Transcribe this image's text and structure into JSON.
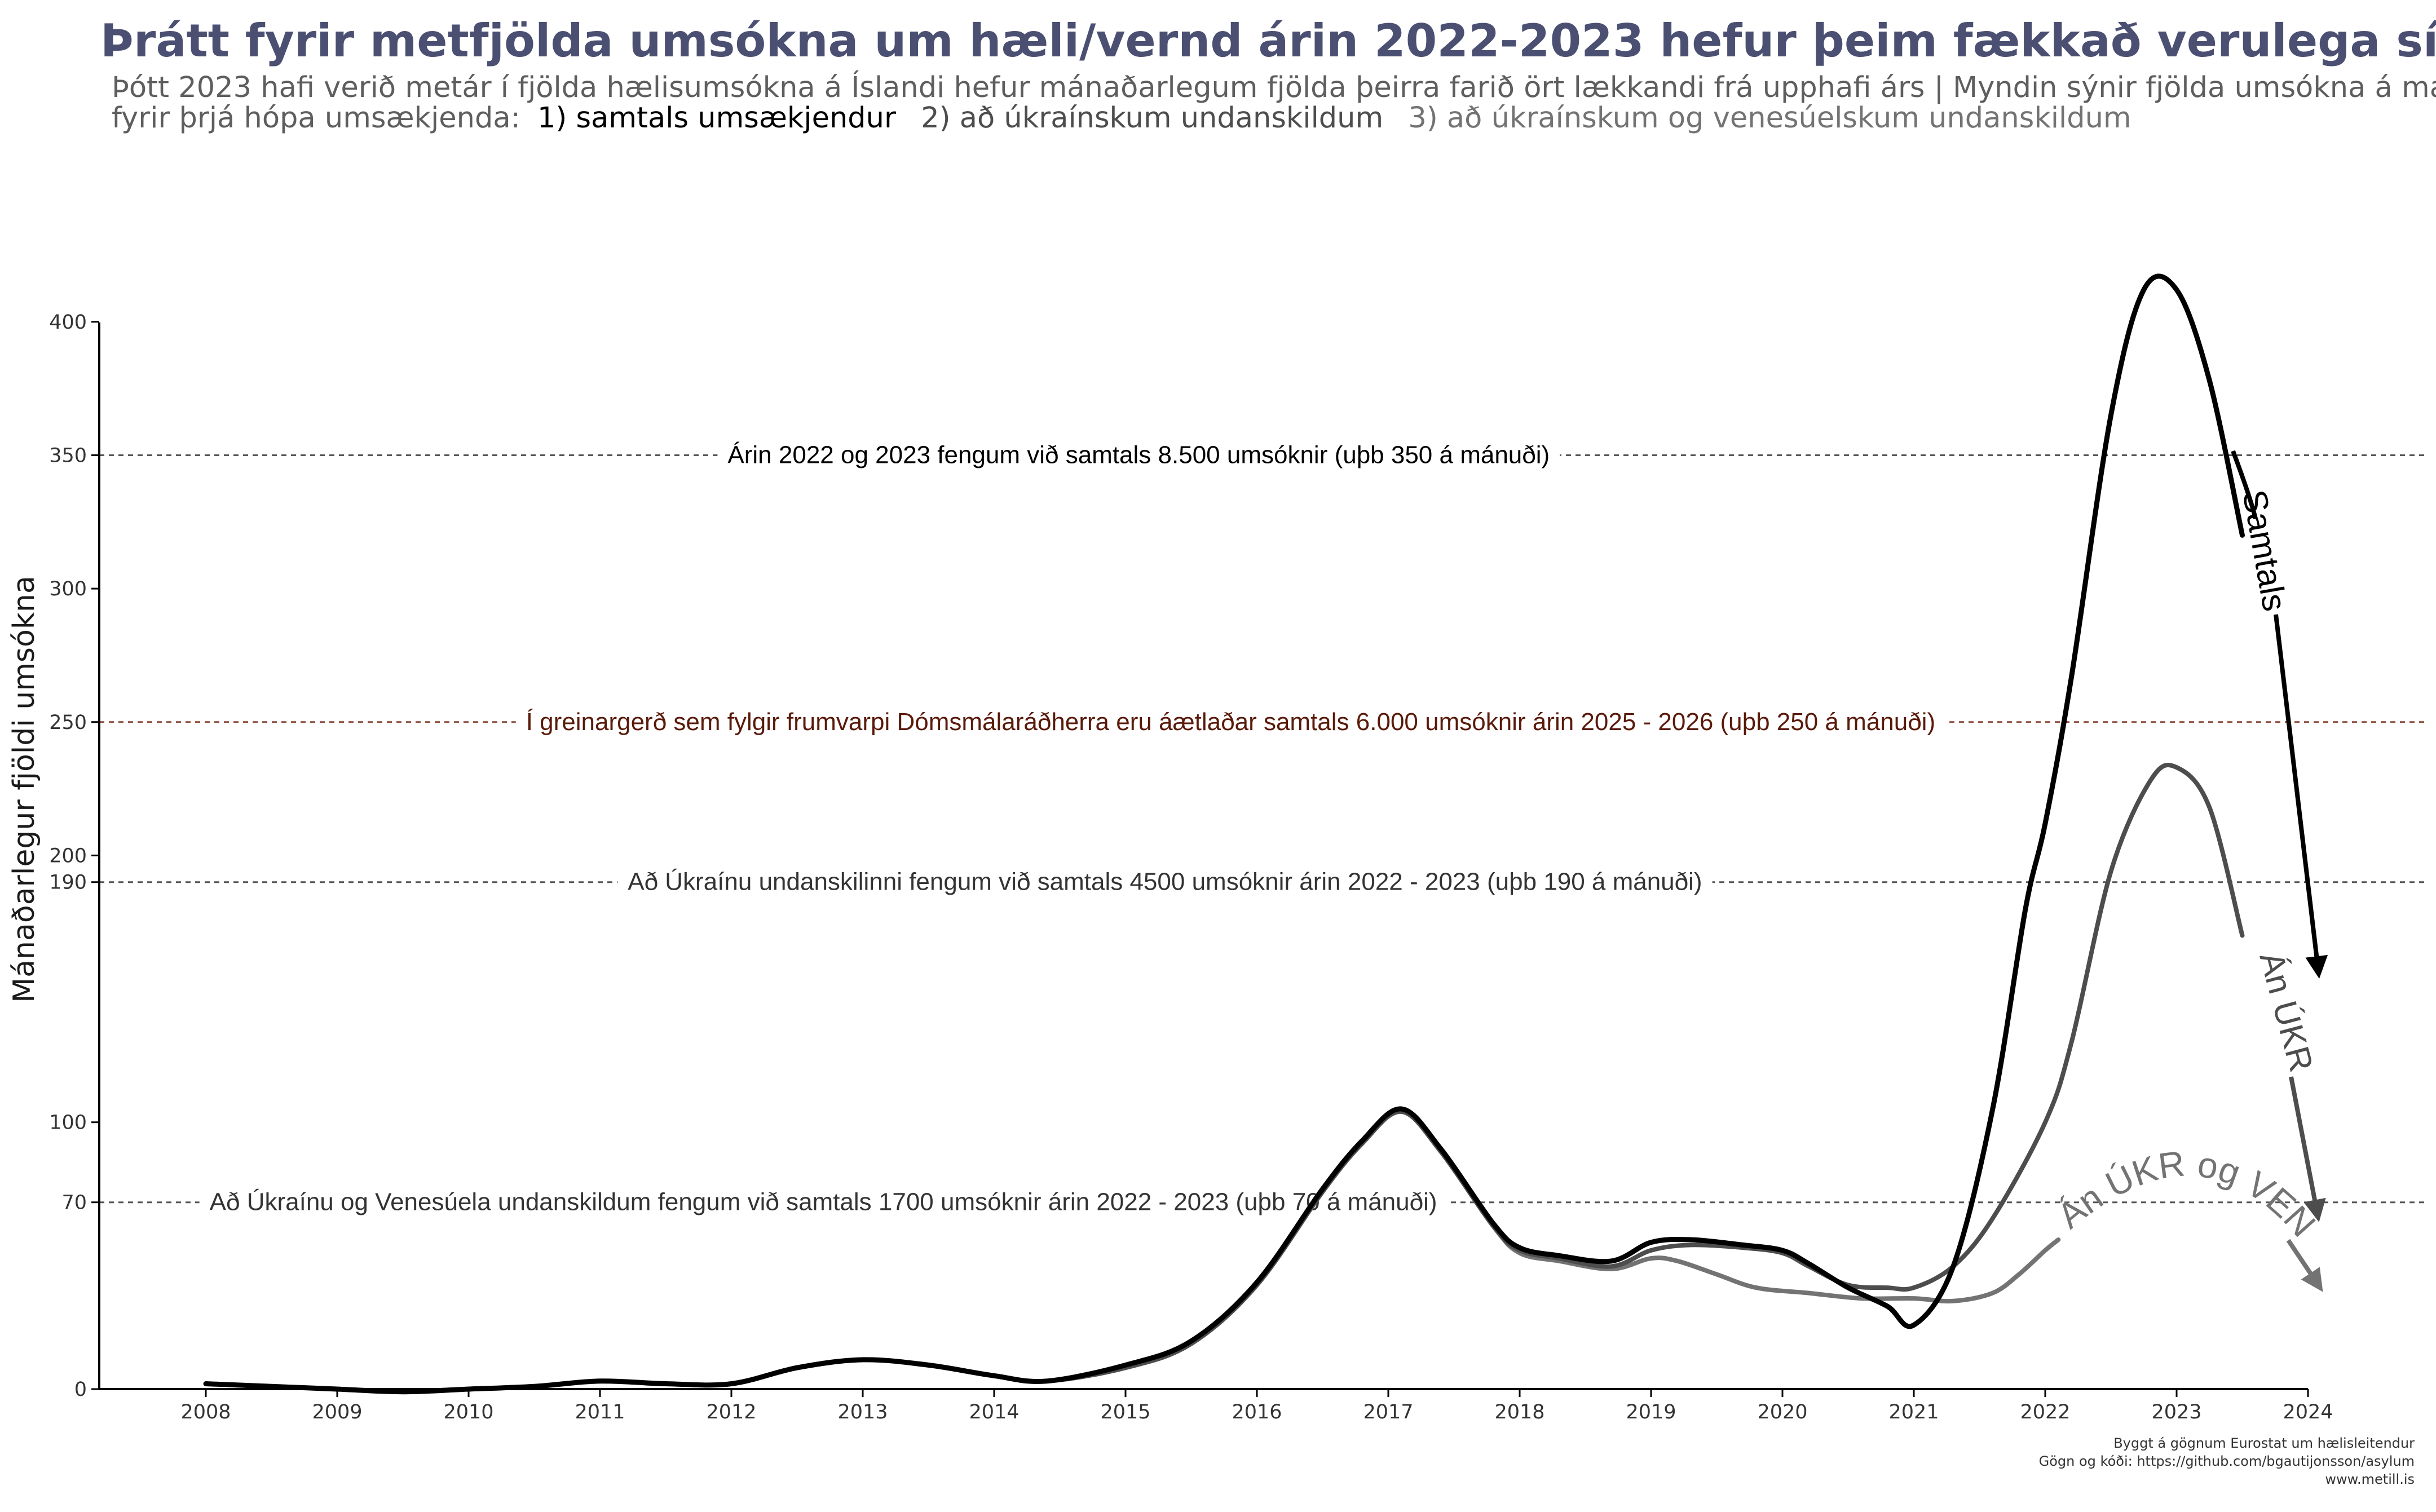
{
  "title": "Þrátt fyrir metfjölda umsókna um hæli/vernd árin 2022-2023 hefur þeim fækkað verulega síðastliðið ár",
  "subtitle": {
    "line1": "Þótt 2023 hafi verið metár í fjölda hælisumsókna á Íslandi hefur mánaðarlegum fjölda þeirra farið ört lækkandi frá upphafi árs | Myndin sýnir fjölda umsókna á mánuði",
    "line2_prefix": "fyrir þrjá hópa umsækjenda:",
    "group1": "1) samtals umsækjendur",
    "group2": "2) að úkraínskum undanskildum",
    "group3": "3) að úkraínskum og venesúelskum undanskildum"
  },
  "caption": {
    "line1": "Byggt á gögnum Eurostat um hælisleitendur",
    "line2": "Gögn og kóði:  https://github.com/bgautijonsson/asylum",
    "line3": "www.metill.is"
  },
  "colors": {
    "title": "#4b5073",
    "samtals": "#000000",
    "an_ukr": "#4d4d4d",
    "an_ukr_ven": "#737373",
    "ref_line_dark": "#555555",
    "ref_line_brown": "#8b4a3a",
    "ref_text_brown": "#5a1a0a"
  },
  "chart_data": {
    "type": "line",
    "ylabel": "Mánaðarlegur fjöldi umsókna",
    "xlabel": "",
    "xlim": [
      2008,
      2024
    ],
    "ylim": [
      0,
      420
    ],
    "y_ticks": [
      0,
      70,
      100,
      190,
      200,
      250,
      300,
      350,
      400
    ],
    "x_ticks": [
      2008,
      2009,
      2010,
      2011,
      2012,
      2013,
      2014,
      2015,
      2016,
      2017,
      2018,
      2019,
      2020,
      2021,
      2022,
      2023,
      2024
    ],
    "grid": false,
    "series": [
      {
        "name": "Samtals",
        "color": "#000000",
        "points": [
          [
            2008.0,
            2
          ],
          [
            2008.5,
            1
          ],
          [
            2009.0,
            0
          ],
          [
            2009.5,
            -1
          ],
          [
            2010.0,
            0
          ],
          [
            2010.5,
            1
          ],
          [
            2011.0,
            3
          ],
          [
            2011.5,
            2
          ],
          [
            2012.0,
            2
          ],
          [
            2012.5,
            8
          ],
          [
            2013.0,
            11
          ],
          [
            2013.5,
            9
          ],
          [
            2014.0,
            5
          ],
          [
            2014.4,
            3
          ],
          [
            2015.0,
            9
          ],
          [
            2015.5,
            18
          ],
          [
            2016.0,
            40
          ],
          [
            2016.5,
            75
          ],
          [
            2016.8,
            93
          ],
          [
            2017.1,
            105
          ],
          [
            2017.4,
            90
          ],
          [
            2017.8,
            62
          ],
          [
            2018.0,
            53
          ],
          [
            2018.3,
            50
          ],
          [
            2018.7,
            48
          ],
          [
            2019.0,
            55
          ],
          [
            2019.3,
            56
          ],
          [
            2019.7,
            54
          ],
          [
            2020.0,
            52
          ],
          [
            2020.2,
            47
          ],
          [
            2020.5,
            38
          ],
          [
            2020.8,
            31
          ],
          [
            2021.0,
            24
          ],
          [
            2021.3,
            46
          ],
          [
            2021.6,
            105
          ],
          [
            2021.85,
            180
          ],
          [
            2022.0,
            212
          ],
          [
            2022.2,
            267
          ],
          [
            2022.5,
            365
          ],
          [
            2022.75,
            412
          ],
          [
            2023.0,
            412
          ],
          [
            2023.25,
            378
          ],
          [
            2023.5,
            320
          ]
        ]
      },
      {
        "name": "Án ÚKR",
        "color": "#4d4d4d",
        "points": [
          [
            2008.0,
            2
          ],
          [
            2008.5,
            1
          ],
          [
            2009.0,
            0
          ],
          [
            2009.5,
            -1
          ],
          [
            2010.0,
            0
          ],
          [
            2010.5,
            1
          ],
          [
            2011.0,
            3
          ],
          [
            2011.5,
            2
          ],
          [
            2012.0,
            2
          ],
          [
            2012.5,
            8
          ],
          [
            2013.0,
            11
          ],
          [
            2013.5,
            9
          ],
          [
            2014.0,
            5
          ],
          [
            2014.4,
            3
          ],
          [
            2015.0,
            8
          ],
          [
            2015.5,
            17
          ],
          [
            2016.0,
            39
          ],
          [
            2016.5,
            74
          ],
          [
            2016.8,
            92
          ],
          [
            2017.1,
            104
          ],
          [
            2017.4,
            89
          ],
          [
            2017.8,
            61
          ],
          [
            2018.0,
            52
          ],
          [
            2018.3,
            49
          ],
          [
            2018.7,
            46
          ],
          [
            2019.0,
            52
          ],
          [
            2019.3,
            54
          ],
          [
            2019.7,
            53
          ],
          [
            2020.0,
            51
          ],
          [
            2020.2,
            46
          ],
          [
            2020.5,
            39
          ],
          [
            2020.8,
            38
          ],
          [
            2021.0,
            38
          ],
          [
            2021.3,
            46
          ],
          [
            2021.6,
            64
          ],
          [
            2022.0,
            100
          ],
          [
            2022.2,
            130
          ],
          [
            2022.5,
            194
          ],
          [
            2022.8,
            228
          ],
          [
            2023.0,
            233
          ],
          [
            2023.25,
            218
          ],
          [
            2023.5,
            170
          ]
        ]
      },
      {
        "name": "Án ÚKR og VEN",
        "color": "#737373",
        "points": [
          [
            2008.0,
            2
          ],
          [
            2008.5,
            1
          ],
          [
            2009.0,
            0
          ],
          [
            2009.5,
            -1
          ],
          [
            2010.0,
            0
          ],
          [
            2010.5,
            1
          ],
          [
            2011.0,
            3
          ],
          [
            2011.5,
            2
          ],
          [
            2012.0,
            2
          ],
          [
            2012.5,
            8
          ],
          [
            2013.0,
            11
          ],
          [
            2013.5,
            9
          ],
          [
            2014.0,
            5
          ],
          [
            2014.4,
            3
          ],
          [
            2015.0,
            8
          ],
          [
            2015.5,
            17
          ],
          [
            2016.0,
            39
          ],
          [
            2016.5,
            74
          ],
          [
            2016.8,
            92
          ],
          [
            2017.1,
            104
          ],
          [
            2017.4,
            89
          ],
          [
            2017.8,
            61
          ],
          [
            2018.0,
            51
          ],
          [
            2018.3,
            48
          ],
          [
            2018.7,
            45
          ],
          [
            2019.0,
            49
          ],
          [
            2019.2,
            48
          ],
          [
            2019.5,
            43
          ],
          [
            2019.8,
            38
          ],
          [
            2020.2,
            36
          ],
          [
            2020.6,
            34
          ],
          [
            2021.0,
            34
          ],
          [
            2021.3,
            33
          ],
          [
            2021.6,
            36
          ],
          [
            2021.8,
            43
          ],
          [
            2022.0,
            52
          ],
          [
            2022.1,
            56
          ]
        ]
      }
    ],
    "reference_lines": [
      {
        "y": 350,
        "color": "#555555",
        "text_color": "#000000",
        "label": "Árin 2022 og 2023 fengum við samtals 8.500 umsóknir (uþb 350 á mánuði)",
        "label_x": 2015.1
      },
      {
        "y": 250,
        "color": "#8b4a3a",
        "text_color": "#5a1a0a",
        "label": "Í greinargerð sem fylgir frumvarpi Dómsmálaráðherra eru áætlaðar samtals 6.000 umsóknir árin 2025 - 2026 (uþb 250 á mánuði)",
        "label_x": 2015.8
      },
      {
        "y": 190,
        "color": "#555555",
        "text_color": "#333333",
        "label": "Að Úkraínu undanskilinni fengum við samtals 4500 umsóknir árin 2022 - 2023 (uþb 190 á mánuði)",
        "label_x": 2015.3
      },
      {
        "y": 70,
        "color": "#555555",
        "text_color": "#333333",
        "label": "Að Úkraínu og Venesúela undanskildum fengum við samtals 1700 umsóknir árin 2022 - 2023 (uþb 70 á mánuði)",
        "label_x": 2012.7
      }
    ],
    "trend_labels": [
      {
        "series": "Samtals",
        "label": "Samtals",
        "color": "#000000"
      },
      {
        "series": "Án ÚKR",
        "label": "Án ÚKR",
        "color": "#4d4d4d"
      },
      {
        "series": "Án ÚKR og VEN",
        "label": "Án ÚKR og VEN",
        "color": "#737373"
      }
    ]
  }
}
